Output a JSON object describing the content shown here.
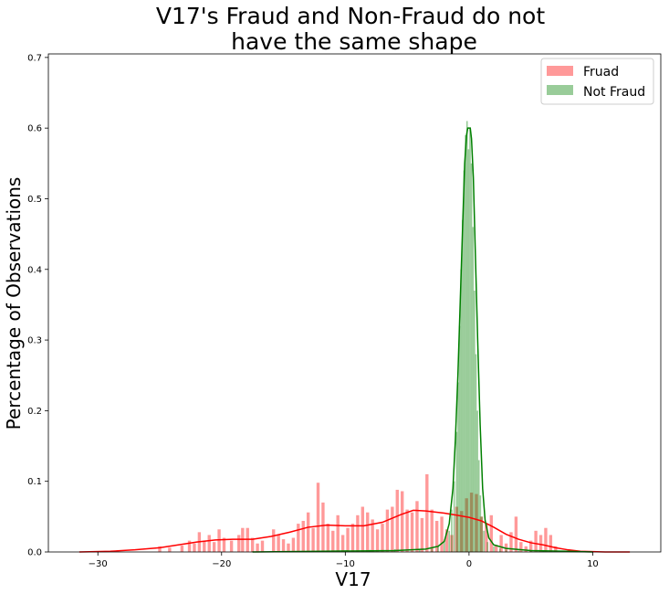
{
  "chart_data": {
    "type": "bar",
    "title_lines": [
      "V17's Fraud and Non-Fraud do not",
      "have the same shape"
    ],
    "xlabel": "V17",
    "ylabel": "Percentage of Observations",
    "xlim": [
      -34.0,
      15.5
    ],
    "ylim": [
      0.0,
      0.705
    ],
    "xticks": [
      -30,
      -20,
      -10,
      0,
      10
    ],
    "xtick_labels": [
      "−30",
      "−20",
      "−10",
      "0",
      "10"
    ],
    "yticks": [
      0.0,
      0.1,
      0.2,
      0.3,
      0.4,
      0.5,
      0.6,
      0.7
    ],
    "ytick_labels": [
      "0.0",
      "0.1",
      "0.2",
      "0.3",
      "0.4",
      "0.5",
      "0.6",
      "0.7"
    ],
    "legend_position": "upper-right",
    "series": [
      {
        "name": "Fruad",
        "color": "#ff0000",
        "bar_opacity": 0.4,
        "bin_width": 0.25,
        "bins": [
          [
            -25.0,
            0.008
          ],
          [
            -24.2,
            0.006
          ],
          [
            -23.2,
            0.009
          ],
          [
            -22.6,
            0.016
          ],
          [
            -22.2,
            0.012
          ],
          [
            -21.8,
            0.028
          ],
          [
            -21.4,
            0.016
          ],
          [
            -21.0,
            0.024
          ],
          [
            -20.6,
            0.014
          ],
          [
            -20.2,
            0.032
          ],
          [
            -19.8,
            0.02
          ],
          [
            -19.2,
            0.016
          ],
          [
            -18.6,
            0.024
          ],
          [
            -18.3,
            0.034
          ],
          [
            -17.9,
            0.034
          ],
          [
            -17.5,
            0.02
          ],
          [
            -17.1,
            0.012
          ],
          [
            -16.7,
            0.016
          ],
          [
            -15.8,
            0.032
          ],
          [
            -15.4,
            0.024
          ],
          [
            -15.0,
            0.018
          ],
          [
            -14.6,
            0.012
          ],
          [
            -14.2,
            0.02
          ],
          [
            -13.8,
            0.04
          ],
          [
            -13.4,
            0.044
          ],
          [
            -13.0,
            0.056
          ],
          [
            -12.6,
            0.034
          ],
          [
            -12.2,
            0.098
          ],
          [
            -11.8,
            0.07
          ],
          [
            -11.4,
            0.04
          ],
          [
            -11.0,
            0.03
          ],
          [
            -10.6,
            0.052
          ],
          [
            -10.2,
            0.024
          ],
          [
            -9.8,
            0.034
          ],
          [
            -9.4,
            0.04
          ],
          [
            -9.0,
            0.052
          ],
          [
            -8.6,
            0.064
          ],
          [
            -8.2,
            0.056
          ],
          [
            -7.8,
            0.046
          ],
          [
            -7.4,
            0.032
          ],
          [
            -7.0,
            0.04
          ],
          [
            -6.6,
            0.06
          ],
          [
            -6.2,
            0.064
          ],
          [
            -5.8,
            0.088
          ],
          [
            -5.4,
            0.086
          ],
          [
            -5.0,
            0.06
          ],
          [
            -4.6,
            0.056
          ],
          [
            -4.2,
            0.072
          ],
          [
            -3.8,
            0.048
          ],
          [
            -3.4,
            0.11
          ],
          [
            -3.0,
            0.06
          ],
          [
            -2.6,
            0.044
          ],
          [
            -2.2,
            0.05
          ],
          [
            -1.8,
            0.032
          ],
          [
            -1.4,
            0.024
          ],
          [
            -1.0,
            0.064
          ],
          [
            -0.6,
            0.058
          ],
          [
            -0.2,
            0.076
          ],
          [
            0.2,
            0.084
          ],
          [
            0.6,
            0.082
          ],
          [
            1.0,
            0.05
          ],
          [
            1.4,
            0.04
          ],
          [
            1.8,
            0.052
          ],
          [
            2.2,
            0.01
          ],
          [
            2.6,
            0.024
          ],
          [
            3.0,
            0.012
          ],
          [
            3.4,
            0.028
          ],
          [
            3.8,
            0.05
          ],
          [
            4.2,
            0.014
          ],
          [
            4.6,
            0.008
          ],
          [
            5.0,
            0.016
          ],
          [
            5.4,
            0.03
          ],
          [
            5.8,
            0.024
          ],
          [
            6.2,
            0.034
          ],
          [
            6.6,
            0.024
          ],
          [
            7.0,
            0.008
          ]
        ],
        "kde": [
          [
            -31.5,
            0.0
          ],
          [
            -29.0,
            0.001
          ],
          [
            -27.0,
            0.003
          ],
          [
            -25.0,
            0.006
          ],
          [
            -23.5,
            0.01
          ],
          [
            -22.0,
            0.014
          ],
          [
            -20.5,
            0.017
          ],
          [
            -19.0,
            0.018
          ],
          [
            -17.5,
            0.018
          ],
          [
            -16.0,
            0.022
          ],
          [
            -14.5,
            0.028
          ],
          [
            -13.0,
            0.035
          ],
          [
            -11.5,
            0.038
          ],
          [
            -10.0,
            0.037
          ],
          [
            -8.5,
            0.037
          ],
          [
            -7.0,
            0.042
          ],
          [
            -5.5,
            0.053
          ],
          [
            -4.5,
            0.059
          ],
          [
            -3.5,
            0.058
          ],
          [
            -2.0,
            0.055
          ],
          [
            -1.0,
            0.052
          ],
          [
            0.0,
            0.049
          ],
          [
            1.0,
            0.044
          ],
          [
            2.0,
            0.035
          ],
          [
            3.0,
            0.025
          ],
          [
            4.0,
            0.018
          ],
          [
            5.0,
            0.013
          ],
          [
            6.0,
            0.01
          ],
          [
            7.0,
            0.006
          ],
          [
            8.0,
            0.003
          ],
          [
            9.0,
            0.001
          ],
          [
            11.0,
            0.0
          ],
          [
            13.0,
            0.0
          ]
        ]
      },
      {
        "name": "Not Fraud",
        "color": "#008000",
        "bar_opacity": 0.4,
        "bin_width": 0.12,
        "bins": [
          [
            -17.5,
            0.001
          ],
          [
            -15.0,
            0.001
          ],
          [
            -12.0,
            0.002
          ],
          [
            -10.0,
            0.002
          ],
          [
            -8.0,
            0.003
          ],
          [
            -6.0,
            0.004
          ],
          [
            -4.0,
            0.004
          ],
          [
            -3.0,
            0.005
          ],
          [
            -2.5,
            0.008
          ],
          [
            -2.0,
            0.014
          ],
          [
            -1.6,
            0.03
          ],
          [
            -1.4,
            0.06
          ],
          [
            -1.2,
            0.1
          ],
          [
            -1.0,
            0.17
          ],
          [
            -0.88,
            0.24
          ],
          [
            -0.76,
            0.32
          ],
          [
            -0.64,
            0.4
          ],
          [
            -0.52,
            0.47
          ],
          [
            -0.4,
            0.54
          ],
          [
            -0.28,
            0.59
          ],
          [
            -0.16,
            0.61
          ],
          [
            -0.04,
            0.57
          ],
          [
            0.08,
            0.6
          ],
          [
            0.2,
            0.55
          ],
          [
            0.32,
            0.46
          ],
          [
            0.44,
            0.37
          ],
          [
            0.56,
            0.28
          ],
          [
            0.68,
            0.2
          ],
          [
            0.8,
            0.13
          ],
          [
            0.92,
            0.08
          ],
          [
            1.04,
            0.05
          ],
          [
            1.2,
            0.03
          ],
          [
            1.5,
            0.014
          ],
          [
            2.0,
            0.008
          ],
          [
            2.5,
            0.005
          ],
          [
            3.0,
            0.003
          ],
          [
            4.0,
            0.002
          ],
          [
            5.0,
            0.002
          ],
          [
            6.0,
            0.001
          ],
          [
            8.0,
            0.001
          ]
        ],
        "kde": [
          [
            -17.5,
            0.0
          ],
          [
            -12.0,
            0.001
          ],
          [
            -6.0,
            0.002
          ],
          [
            -3.5,
            0.004
          ],
          [
            -2.5,
            0.008
          ],
          [
            -2.0,
            0.015
          ],
          [
            -1.6,
            0.04
          ],
          [
            -1.3,
            0.09
          ],
          [
            -1.1,
            0.16
          ],
          [
            -0.9,
            0.25
          ],
          [
            -0.7,
            0.36
          ],
          [
            -0.5,
            0.47
          ],
          [
            -0.35,
            0.55
          ],
          [
            -0.2,
            0.59
          ],
          [
            -0.1,
            0.6
          ],
          [
            0.1,
            0.6
          ],
          [
            0.2,
            0.585
          ],
          [
            0.35,
            0.53
          ],
          [
            0.5,
            0.43
          ],
          [
            0.7,
            0.3
          ],
          [
            0.9,
            0.18
          ],
          [
            1.1,
            0.09
          ],
          [
            1.3,
            0.045
          ],
          [
            1.6,
            0.02
          ],
          [
            2.0,
            0.01
          ],
          [
            3.0,
            0.005
          ],
          [
            5.0,
            0.002
          ],
          [
            8.0,
            0.001
          ],
          [
            10.0,
            0.0
          ]
        ]
      }
    ]
  }
}
